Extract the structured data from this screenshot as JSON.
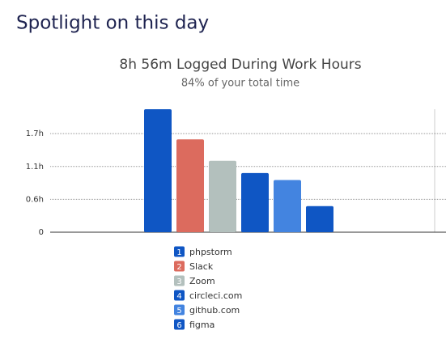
{
  "header": {
    "title": "Spotlight on this day"
  },
  "chart_data": {
    "type": "bar",
    "title": "8h 56m Logged During Work Hours",
    "subtitle": "84% of your total time",
    "categories": [
      "phpstorm",
      "Slack",
      "Zoom",
      "circleci.com",
      "github.com",
      "figma"
    ],
    "legend_numbers": [
      "1",
      "2",
      "3",
      "4",
      "5",
      "6"
    ],
    "values": [
      2.12,
      1.6,
      1.23,
      1.02,
      0.9,
      0.45
    ],
    "colors": [
      "#0f56c4",
      "#dc6b5e",
      "#b3c0bd",
      "#0f56c4",
      "#4384e0",
      "#0f56c4"
    ],
    "ylim": [
      0,
      2.12
    ],
    "yticks": [
      0,
      {
        "value": 0.567,
        "label": "0.6h"
      },
      {
        "value": 1.133,
        "label": "1.1h"
      },
      {
        "value": 1.7,
        "label": "1.7h"
      }
    ],
    "grid": true
  }
}
